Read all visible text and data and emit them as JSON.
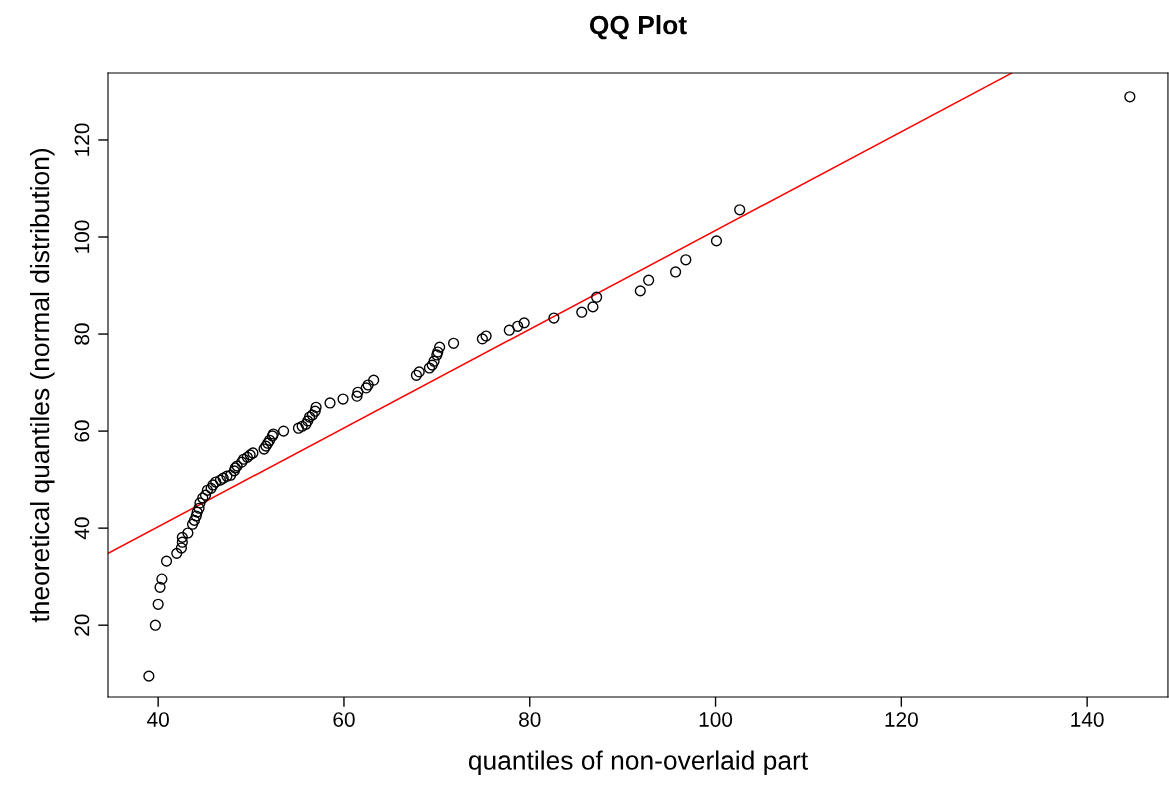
{
  "chart_data": {
    "type": "scatter",
    "title": "QQ Plot",
    "xlabel": "quantiles of non-overlaid part",
    "ylabel": "theoretical quantiles (normal distribution)",
    "xlim": [
      34.6,
      148.7
    ],
    "ylim": [
      5.2,
      133.8
    ],
    "xticks": [
      40,
      60,
      80,
      100,
      120,
      140
    ],
    "yticks": [
      20,
      40,
      60,
      80,
      100,
      120
    ],
    "grid": false,
    "series": [
      {
        "color": "#000000",
        "marker": "circle",
        "x": [
          39.0,
          39.7,
          40.0,
          40.2,
          40.4,
          40.9,
          42.0,
          42.5,
          42.6,
          42.6,
          43.2,
          43.7,
          43.9,
          44.1,
          44.2,
          44.4,
          44.5,
          44.8,
          45.1,
          45.3,
          45.7,
          45.9,
          46.2,
          46.7,
          47.0,
          47.4,
          47.8,
          48.2,
          48.3,
          48.5,
          49.0,
          49.2,
          49.6,
          49.9,
          50.2,
          51.4,
          51.6,
          51.8,
          52.0,
          52.3,
          52.4,
          53.5,
          55.1,
          55.5,
          55.9,
          56.1,
          56.3,
          56.6,
          56.9,
          57.0,
          58.5,
          59.9,
          61.4,
          61.5,
          62.4,
          62.6,
          63.2,
          67.8,
          68.1,
          69.2,
          69.5,
          69.7,
          70.0,
          70.1,
          70.3,
          71.8,
          74.9,
          75.3,
          77.8,
          78.7,
          79.4,
          82.6,
          85.6,
          86.8,
          87.2,
          91.9,
          92.8,
          95.7,
          96.8,
          100.1,
          102.6,
          144.6
        ],
        "values": [
          9.5,
          20.0,
          24.3,
          27.8,
          29.5,
          33.2,
          34.8,
          35.9,
          37.1,
          38.1,
          39.0,
          40.8,
          41.6,
          42.5,
          43.3,
          44.1,
          45.2,
          46.2,
          46.8,
          47.8,
          48.2,
          48.9,
          49.5,
          49.9,
          50.3,
          50.7,
          50.9,
          51.8,
          52.4,
          52.8,
          53.6,
          54.2,
          54.6,
          55.1,
          55.5,
          56.3,
          56.9,
          57.5,
          58.1,
          59.0,
          59.4,
          60.0,
          60.6,
          61.0,
          61.4,
          62.1,
          62.9,
          63.3,
          64.1,
          64.9,
          65.8,
          66.6,
          67.2,
          68.0,
          68.9,
          69.5,
          70.5,
          71.5,
          72.2,
          73.0,
          73.6,
          74.4,
          75.7,
          76.3,
          77.3,
          78.1,
          79.0,
          79.6,
          80.8,
          81.6,
          82.3,
          83.3,
          84.5,
          85.6,
          87.6,
          88.9,
          91.1,
          92.8,
          95.3,
          99.2,
          105.6,
          128.9
        ]
      },
      {
        "type": "line",
        "color": "#ff0000",
        "x": [
          34.6,
          131.9
        ],
        "values": [
          34.8,
          133.8
        ]
      }
    ]
  }
}
